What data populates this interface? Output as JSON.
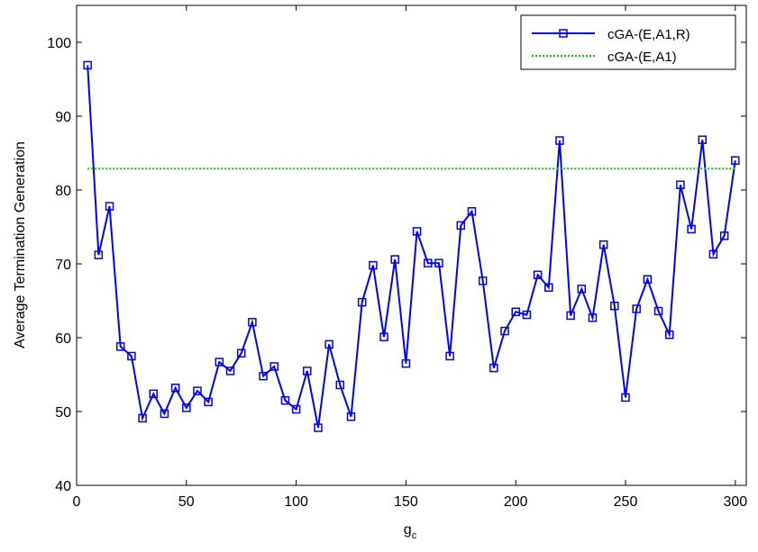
{
  "chart_data": {
    "type": "line",
    "xlabel": "g",
    "xlabel_sub": "c",
    "ylabel": "Average Termination Generation",
    "xlim": [
      0,
      305
    ],
    "ylim": [
      40,
      105
    ],
    "xticks": [
      0,
      50,
      100,
      150,
      200,
      250,
      300
    ],
    "yticks": [
      40,
      50,
      60,
      70,
      80,
      90,
      100
    ],
    "grid": false,
    "legend_position": "top-right",
    "series": [
      {
        "name": "cGA-(E,A1,R)",
        "color": "#0000ff",
        "marker": "square",
        "style": "solid",
        "x": [
          5,
          10,
          15,
          20,
          25,
          30,
          35,
          40,
          45,
          50,
          55,
          60,
          65,
          70,
          75,
          80,
          85,
          90,
          95,
          100,
          105,
          110,
          115,
          120,
          125,
          130,
          135,
          140,
          145,
          150,
          155,
          160,
          165,
          170,
          175,
          180,
          185,
          190,
          195,
          200,
          205,
          210,
          215,
          220,
          225,
          230,
          235,
          240,
          245,
          250,
          255,
          260,
          265,
          270,
          275,
          280,
          285,
          290,
          295,
          300
        ],
        "values": [
          96.9,
          71.2,
          77.8,
          58.8,
          57.5,
          49.1,
          52.4,
          49.7,
          53.2,
          50.5,
          52.8,
          51.3,
          56.7,
          55.5,
          57.9,
          62.1,
          54.8,
          56.1,
          51.5,
          50.3,
          55.5,
          47.8,
          59.1,
          53.6,
          49.3,
          64.8,
          69.8,
          60.1,
          70.6,
          56.5,
          74.4,
          70.1,
          70.1,
          57.5,
          75.2,
          77.1,
          67.7,
          55.9,
          60.9,
          63.5,
          63.1,
          68.5,
          66.8,
          86.7,
          63.0,
          66.6,
          62.7,
          72.6,
          64.3,
          51.9,
          63.9,
          67.9,
          63.6,
          60.4,
          80.7,
          74.7,
          86.8,
          71.3,
          73.8,
          84.0
        ]
      },
      {
        "name": "cGA-(E,A1)",
        "color": "#00d000",
        "marker": "none",
        "style": "dotted",
        "x": [
          5,
          300
        ],
        "values": [
          82.9,
          82.9
        ]
      }
    ]
  }
}
